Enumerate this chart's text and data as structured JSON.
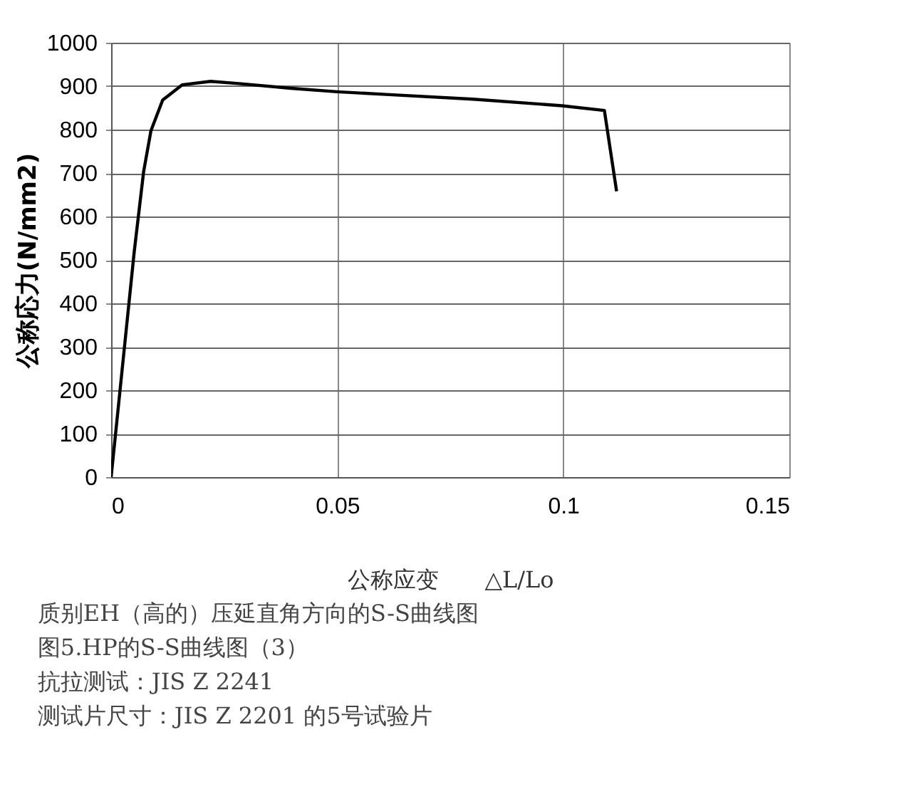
{
  "chart_data": {
    "type": "line",
    "xlabel": "公称应变　　△L/Lo",
    "ylabel": "公称応力(N/mm2)",
    "x": [
      0,
      0.0051,
      0.0072,
      0.0088,
      0.0114,
      0.0157,
      0.022,
      0.0283,
      0.0398,
      0.05,
      0.0608,
      0.08,
      0.0997,
      0.1091,
      0.1118
    ],
    "series": [
      {
        "color": "#000000",
        "values": [
          0,
          518,
          704,
          797,
          868,
          903,
          911,
          906,
          895,
          887,
          881,
          870,
          855,
          844,
          658
        ]
      }
    ],
    "xlim": [
      0,
      0.15
    ],
    "xticks": [
      0,
      0.05,
      0.1,
      0.15
    ],
    "ylim": [
      0,
      1000
    ],
    "yticks": [
      0,
      100,
      200,
      300,
      400,
      500,
      600,
      700,
      800,
      900,
      1000
    ],
    "grid": true,
    "marker": "none",
    "line_style": "solid",
    "annotations": [
      "质别EH（高的）压延直角方向的S-S曲线图",
      "图5.HP的S-S曲线图（3）",
      "抗拉测试：JIS Z 2241",
      "测试片尺寸：JIS Z 2201 的5号试验片"
    ]
  }
}
